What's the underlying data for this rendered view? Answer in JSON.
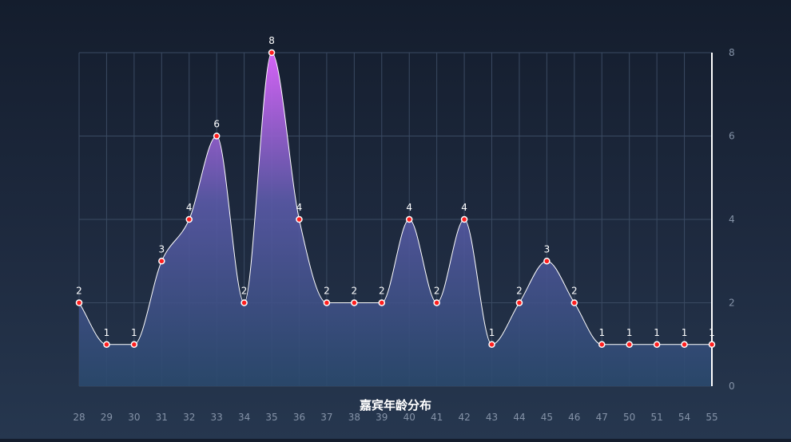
{
  "chart_data": {
    "type": "area",
    "title": "嘉宾年龄分布",
    "xlabel": "",
    "ylabel": "",
    "categories": [
      "28",
      "29",
      "30",
      "31",
      "32",
      "33",
      "34",
      "35",
      "36",
      "37",
      "38",
      "39",
      "40",
      "41",
      "42",
      "43",
      "44",
      "45",
      "46",
      "47",
      "50",
      "51",
      "54",
      "55"
    ],
    "series": [
      {
        "values": [
          2,
          1,
          1,
          3,
          4,
          6,
          2,
          8,
          4,
          2,
          2,
          2,
          4,
          2,
          4,
          1,
          2,
          3,
          2,
          1,
          1,
          1,
          1,
          1
        ]
      }
    ],
    "ylim": [
      0,
      8
    ],
    "yticks": [
      0,
      2,
      4,
      6,
      8
    ],
    "y_axis_position": "right",
    "grid": true,
    "legend": "none",
    "colors": {
      "line": "#ffffff",
      "marker_fill": "#ff1e1e",
      "marker_stroke": "#ffffff",
      "area_top": "#dd66ff",
      "area_bottom": "#2a4a6e",
      "grid": "#3a4a62",
      "axis": "#ffffff"
    }
  }
}
